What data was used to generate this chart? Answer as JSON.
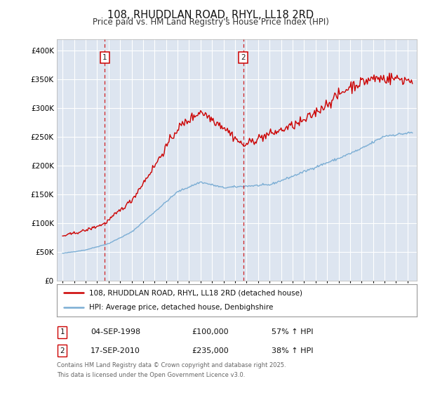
{
  "title": "108, RHUDDLAN ROAD, RHYL, LL18 2RD",
  "subtitle": "Price paid vs. HM Land Registry's House Price Index (HPI)",
  "sale1_date": "04-SEP-1998",
  "sale1_price": 100000,
  "sale1_label": "57% ↑ HPI",
  "sale2_date": "17-SEP-2010",
  "sale2_price": 235000,
  "sale2_label": "38% ↑ HPI",
  "sale1_x": 1998.67,
  "sale2_x": 2010.71,
  "legend_line1": "108, RHUDDLAN ROAD, RHYL, LL18 2RD (detached house)",
  "legend_line2": "HPI: Average price, detached house, Denbighshire",
  "footnote1": "Contains HM Land Registry data © Crown copyright and database right 2025.",
  "footnote2": "This data is licensed under the Open Government Licence v3.0.",
  "property_color": "#cc0000",
  "hpi_color": "#7aadd4",
  "dashed_color": "#cc0000",
  "background_color": "#dde5f0",
  "grid_color": "#ffffff",
  "ylim_min": 0,
  "ylim_max": 420000,
  "xlim_min": 1994.5,
  "xlim_max": 2025.8,
  "hpi_key_years": [
    1995,
    1997,
    1999,
    2001,
    2003,
    2005,
    2007,
    2009,
    2011,
    2013,
    2015,
    2017,
    2019,
    2021,
    2023,
    2025.5
  ],
  "hpi_key_vals": [
    48000,
    54000,
    65000,
    85000,
    120000,
    155000,
    172000,
    162000,
    165000,
    167000,
    182000,
    198000,
    213000,
    230000,
    252000,
    258000
  ],
  "prop_key_years": [
    1995,
    1997,
    1998,
    1998.67,
    2001,
    2003,
    2005,
    2007,
    2009,
    2010.71,
    2012,
    2014,
    2016,
    2018,
    2020,
    2022,
    2024,
    2025.5
  ],
  "prop_key_vals": [
    78000,
    88000,
    95000,
    100000,
    140000,
    200000,
    265000,
    295000,
    268000,
    235000,
    248000,
    262000,
    278000,
    308000,
    338000,
    352000,
    352000,
    348000
  ]
}
